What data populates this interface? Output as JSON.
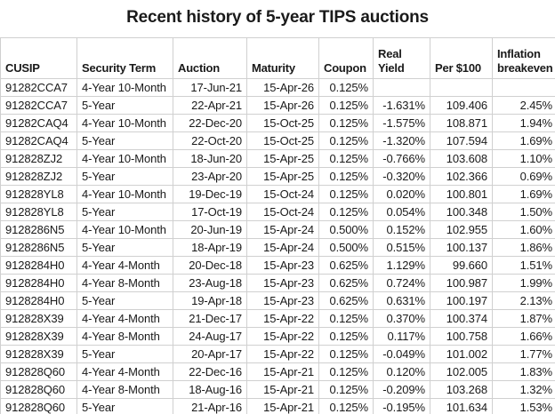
{
  "title": "Recent history of 5-year TIPS auctions",
  "style": {
    "text_color": "#1a1a1a",
    "grid_color": "#d0d0d0",
    "background": "#ffffff"
  },
  "chart_data": {
    "type": "table",
    "title": "Recent history of 5-year TIPS auctions",
    "columns": [
      {
        "label": "CUSIP",
        "align": "left"
      },
      {
        "label": "Security Term",
        "align": "left"
      },
      {
        "label": "Auction",
        "align": "right"
      },
      {
        "label": "Maturity",
        "align": "right"
      },
      {
        "label": "Coupon",
        "align": "right"
      },
      {
        "label": "Real Yield",
        "align": "right"
      },
      {
        "label": "Per $100",
        "align": "right"
      },
      {
        "label": "Inflation breakeven",
        "align": "right"
      }
    ],
    "rows": [
      [
        "91282CCA7",
        "4-Year 10-Month",
        "17-Jun-21",
        "15-Apr-26",
        "0.125%",
        "",
        "",
        ""
      ],
      [
        "91282CCA7",
        "5-Year",
        "22-Apr-21",
        "15-Apr-26",
        "0.125%",
        "-1.631%",
        "109.406",
        "2.45%"
      ],
      [
        "91282CAQ4",
        "4-Year 10-Month",
        "22-Dec-20",
        "15-Oct-25",
        "0.125%",
        "-1.575%",
        "108.871",
        "1.94%"
      ],
      [
        "91282CAQ4",
        "5-Year",
        "22-Oct-20",
        "15-Oct-25",
        "0.125%",
        "-1.320%",
        "107.594",
        "1.69%"
      ],
      [
        "912828ZJ2",
        "4-Year 10-Month",
        "18-Jun-20",
        "15-Apr-25",
        "0.125%",
        "-0.766%",
        "103.608",
        "1.10%"
      ],
      [
        "912828ZJ2",
        "5-Year",
        "23-Apr-20",
        "15-Apr-25",
        "0.125%",
        "-0.320%",
        "102.366",
        "0.69%"
      ],
      [
        "912828YL8",
        "4-Year 10-Month",
        "19-Dec-19",
        "15-Oct-24",
        "0.125%",
        "0.020%",
        "100.801",
        "1.69%"
      ],
      [
        "912828YL8",
        "5-Year",
        "17-Oct-19",
        "15-Oct-24",
        "0.125%",
        "0.054%",
        "100.348",
        "1.50%"
      ],
      [
        "9128286N5",
        "4-Year 10-Month",
        "20-Jun-19",
        "15-Apr-24",
        "0.500%",
        "0.152%",
        "102.955",
        "1.60%"
      ],
      [
        "9128286N5",
        "5-Year",
        "18-Apr-19",
        "15-Apr-24",
        "0.500%",
        "0.515%",
        "100.137",
        "1.86%"
      ],
      [
        "9128284H0",
        "4-Year 4-Month",
        "20-Dec-18",
        "15-Apr-23",
        "0.625%",
        "1.129%",
        "99.660",
        "1.51%"
      ],
      [
        "9128284H0",
        "4-Year 8-Month",
        "23-Aug-18",
        "15-Apr-23",
        "0.625%",
        "0.724%",
        "100.987",
        "1.99%"
      ],
      [
        "9128284H0",
        "5-Year",
        "19-Apr-18",
        "15-Apr-23",
        "0.625%",
        "0.631%",
        "100.197",
        "2.13%"
      ],
      [
        "912828X39",
        "4-Year 4-Month",
        "21-Dec-17",
        "15-Apr-22",
        "0.125%",
        "0.370%",
        "100.374",
        "1.87%"
      ],
      [
        "912828X39",
        "4-Year 8-Month",
        "24-Aug-17",
        "15-Apr-22",
        "0.125%",
        "0.117%",
        "100.758",
        "1.66%"
      ],
      [
        "912828X39",
        "5-Year",
        "20-Apr-17",
        "15-Apr-22",
        "0.125%",
        "-0.049%",
        "101.002",
        "1.77%"
      ],
      [
        "912828Q60",
        "4-Year 4-Month",
        "22-Dec-16",
        "15-Apr-21",
        "0.125%",
        "0.120%",
        "102.005",
        "1.83%"
      ],
      [
        "912828Q60",
        "4-Year 8-Month",
        "18-Aug-16",
        "15-Apr-21",
        "0.125%",
        "-0.209%",
        "103.268",
        "1.32%"
      ],
      [
        "912828Q60",
        "5-Year",
        "21-Apr-16",
        "15-Apr-21",
        "0.125%",
        "-0.195%",
        "101.634",
        "1.53%"
      ]
    ]
  }
}
